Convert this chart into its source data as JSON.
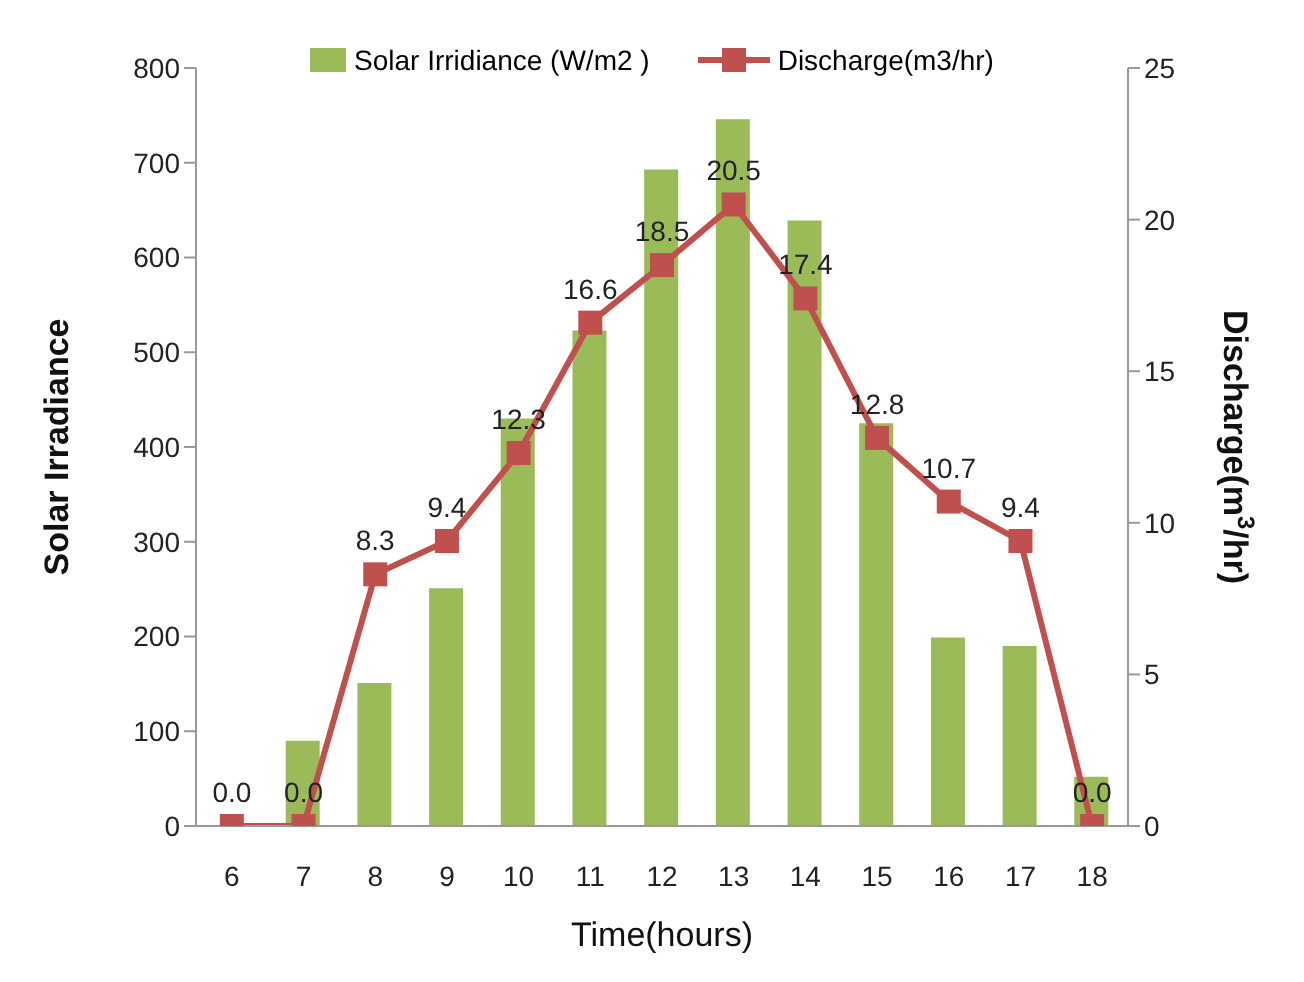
{
  "chart_data": {
    "type": "bar",
    "xlabel": "Time(hours)",
    "ylabel": "Solar Irradiance",
    "y2label": "Discharge(m$^{3}$/hr)",
    "categories": [
      "6",
      "7",
      "8",
      "9",
      "10",
      "11",
      "12",
      "13",
      "14",
      "15",
      "16",
      "17",
      "18"
    ],
    "series": [
      {
        "name": "Solar Irridiance (W/m2 )",
        "color": "#9bbb59",
        "values": [
          0,
          90,
          151,
          251,
          430,
          523,
          693,
          746,
          639,
          425,
          199,
          190,
          52
        ]
      },
      {
        "name": "Discharge(m3/hr)",
        "type": "line",
        "axis": "y2",
        "color": "#c0504d",
        "marker": "square",
        "values": [
          0.0,
          0.0,
          8.3,
          9.4,
          12.3,
          16.6,
          18.5,
          20.5,
          17.4,
          12.8,
          10.7,
          9.4,
          0.0
        ],
        "value_labels": [
          "0.0",
          "0.0",
          "8.3",
          "9.4",
          "12.3",
          "16.6",
          "18.5",
          "20.5",
          "17.4",
          "12.8",
          "10.7",
          "9.4",
          "0.0"
        ]
      }
    ],
    "ylim": [
      0,
      800
    ],
    "yticks": [
      0,
      100,
      200,
      300,
      400,
      500,
      600,
      700,
      800
    ],
    "y2lim": [
      0,
      25
    ],
    "y2ticks": [
      0,
      5,
      10,
      15,
      20,
      25
    ],
    "grid": false,
    "legend": "top"
  }
}
